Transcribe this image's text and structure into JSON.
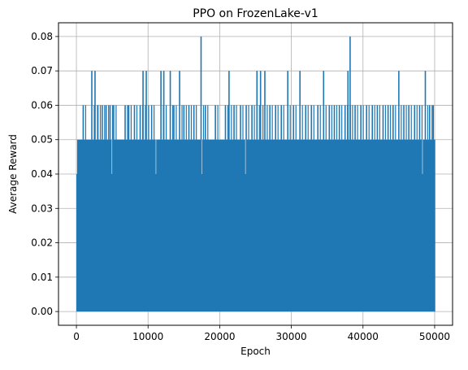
{
  "chart_data": {
    "type": "line",
    "title": "PPO on FrozenLake-v1",
    "xlabel": "Epoch",
    "ylabel": "Average Reward",
    "xlim": [
      -2500,
      52500
    ],
    "ylim": [
      -0.004,
      0.084
    ],
    "x_ticks": [
      0,
      10000,
      20000,
      30000,
      40000,
      50000
    ],
    "x_tick_labels": [
      "0",
      "10000",
      "20000",
      "30000",
      "40000",
      "50000"
    ],
    "y_ticks": [
      0.0,
      0.01,
      0.02,
      0.03,
      0.04,
      0.05,
      0.06,
      0.07,
      0.08
    ],
    "y_tick_labels": [
      "0.00",
      "0.01",
      "0.02",
      "0.03",
      "0.04",
      "0.05",
      "0.06",
      "0.07",
      "0.08"
    ],
    "grid": true,
    "series": [
      {
        "color": "#1f77b4",
        "x_range": [
          0,
          50000
        ],
        "baseline_min": 0.0,
        "early_max": 0.04,
        "early_max_until": 100,
        "typical_max": 0.05,
        "spikes": [
          {
            "x": 950,
            "y": 0.06
          },
          {
            "x": 2150,
            "y": 0.07
          },
          {
            "x": 2600,
            "y": 0.07
          },
          {
            "x": 3000,
            "y": 0.06
          },
          {
            "x": 3600,
            "y": 0.06
          },
          {
            "x": 4150,
            "y": 0.06
          },
          {
            "x": 4700,
            "y": 0.06
          },
          {
            "x": 5200,
            "y": 0.06
          },
          {
            "x": 6800,
            "y": 0.06
          },
          {
            "x": 7300,
            "y": 0.06
          },
          {
            "x": 8100,
            "y": 0.06
          },
          {
            "x": 8900,
            "y": 0.06
          },
          {
            "x": 9300,
            "y": 0.07
          },
          {
            "x": 9750,
            "y": 0.07
          },
          {
            "x": 10500,
            "y": 0.06
          },
          {
            "x": 11800,
            "y": 0.07
          },
          {
            "x": 12200,
            "y": 0.07
          },
          {
            "x": 13100,
            "y": 0.07
          },
          {
            "x": 13600,
            "y": 0.06
          },
          {
            "x": 14400,
            "y": 0.07
          },
          {
            "x": 15000,
            "y": 0.06
          },
          {
            "x": 15700,
            "y": 0.06
          },
          {
            "x": 16400,
            "y": 0.06
          },
          {
            "x": 17400,
            "y": 0.08
          },
          {
            "x": 18000,
            "y": 0.06
          },
          {
            "x": 18800,
            "y": 0.05
          },
          {
            "x": 19400,
            "y": 0.06
          },
          {
            "x": 20800,
            "y": 0.06
          },
          {
            "x": 21300,
            "y": 0.07
          },
          {
            "x": 22000,
            "y": 0.06
          },
          {
            "x": 22900,
            "y": 0.06
          },
          {
            "x": 23700,
            "y": 0.06
          },
          {
            "x": 24500,
            "y": 0.06
          },
          {
            "x": 25200,
            "y": 0.07
          },
          {
            "x": 25700,
            "y": 0.07
          },
          {
            "x": 26300,
            "y": 0.07
          },
          {
            "x": 27000,
            "y": 0.06
          },
          {
            "x": 27800,
            "y": 0.06
          },
          {
            "x": 28600,
            "y": 0.06
          },
          {
            "x": 29500,
            "y": 0.07
          },
          {
            "x": 30300,
            "y": 0.06
          },
          {
            "x": 31200,
            "y": 0.07
          },
          {
            "x": 32000,
            "y": 0.06
          },
          {
            "x": 32800,
            "y": 0.06
          },
          {
            "x": 33700,
            "y": 0.06
          },
          {
            "x": 34500,
            "y": 0.07
          },
          {
            "x": 35300,
            "y": 0.06
          },
          {
            "x": 36000,
            "y": 0.06
          },
          {
            "x": 36700,
            "y": 0.06
          },
          {
            "x": 37500,
            "y": 0.06
          },
          {
            "x": 37900,
            "y": 0.07
          },
          {
            "x": 38200,
            "y": 0.08
          },
          {
            "x": 38900,
            "y": 0.06
          },
          {
            "x": 39700,
            "y": 0.06
          },
          {
            "x": 40500,
            "y": 0.06
          },
          {
            "x": 41300,
            "y": 0.06
          },
          {
            "x": 42000,
            "y": 0.06
          },
          {
            "x": 42800,
            "y": 0.06
          },
          {
            "x": 43500,
            "y": 0.06
          },
          {
            "x": 44200,
            "y": 0.06
          },
          {
            "x": 45000,
            "y": 0.07
          },
          {
            "x": 45700,
            "y": 0.06
          },
          {
            "x": 46400,
            "y": 0.06
          },
          {
            "x": 47200,
            "y": 0.06
          },
          {
            "x": 47900,
            "y": 0.06
          },
          {
            "x": 48700,
            "y": 0.07
          },
          {
            "x": 49300,
            "y": 0.06
          },
          {
            "x": 49800,
            "y": 0.06
          }
        ],
        "dips": [
          {
            "x": 4950,
            "y": 0.04
          },
          {
            "x": 11100,
            "y": 0.04
          },
          {
            "x": 17500,
            "y": 0.04
          },
          {
            "x": 23600,
            "y": 0.04
          },
          {
            "x": 48300,
            "y": 0.04
          }
        ]
      }
    ]
  }
}
